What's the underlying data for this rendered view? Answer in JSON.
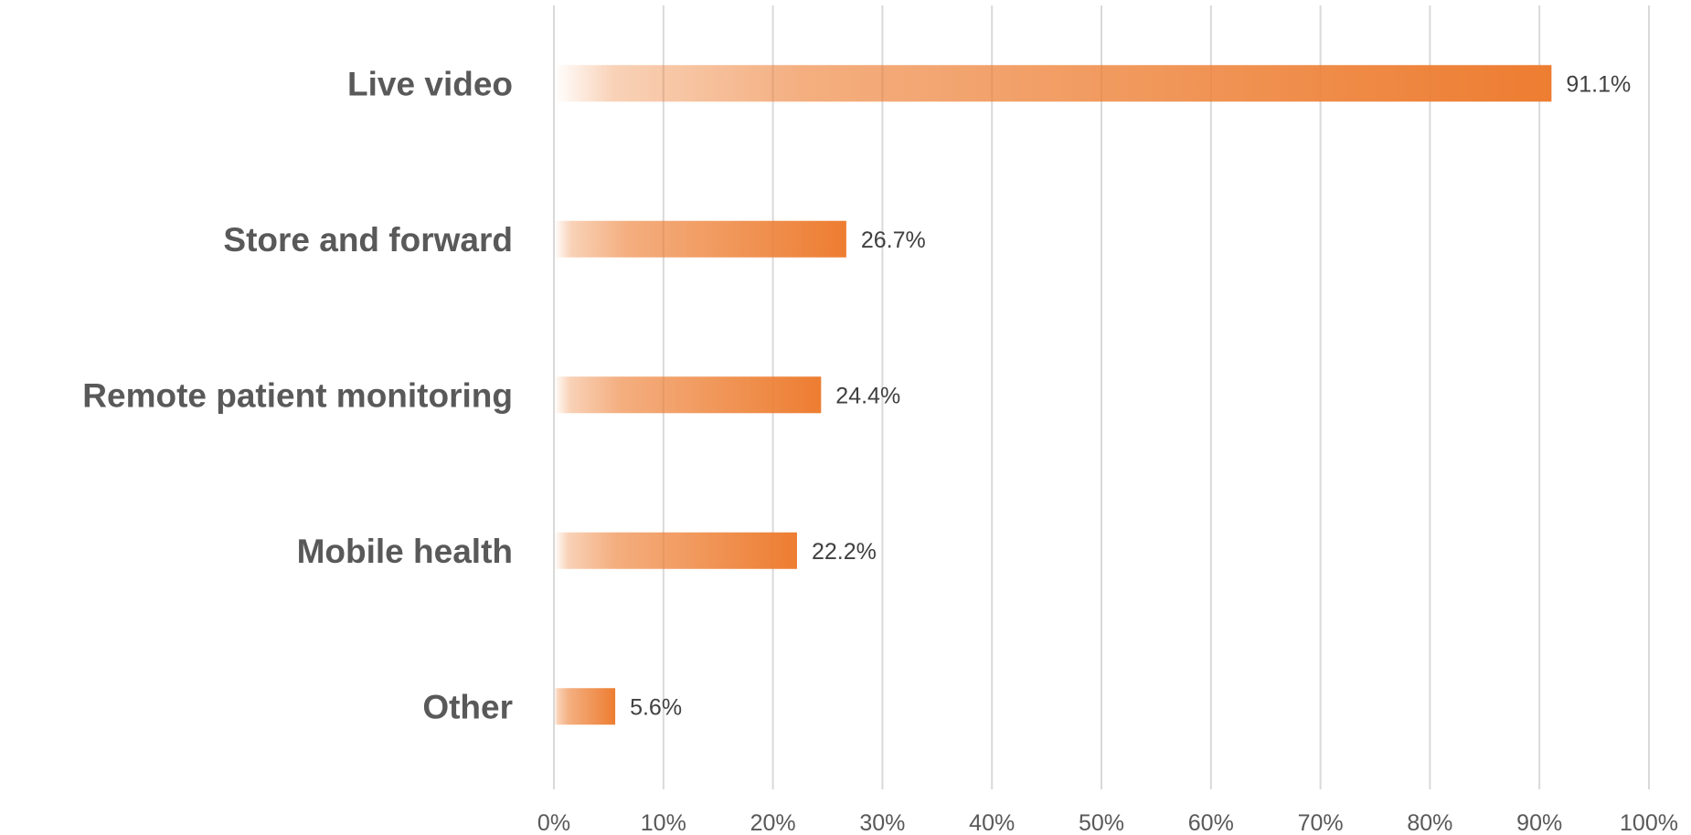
{
  "chart_data": {
    "type": "bar",
    "orientation": "horizontal",
    "categories": [
      "Live video",
      "Store and forward",
      "Remote patient monitoring",
      "Mobile health",
      "Other"
    ],
    "values": [
      91.1,
      26.7,
      24.4,
      22.2,
      5.6
    ],
    "data_labels": [
      "91.1%",
      "26.7%",
      "24.4%",
      "22.2%",
      "5.6%"
    ],
    "x_ticks": [
      "0%",
      "10%",
      "20%",
      "30%",
      "40%",
      "50%",
      "60%",
      "70%",
      "80%",
      "90%",
      "100%"
    ],
    "xlim": [
      0,
      100
    ],
    "grid": true,
    "legend": "none",
    "bar_color": "#ED7D31",
    "title": "",
    "xlabel": "",
    "ylabel": ""
  }
}
